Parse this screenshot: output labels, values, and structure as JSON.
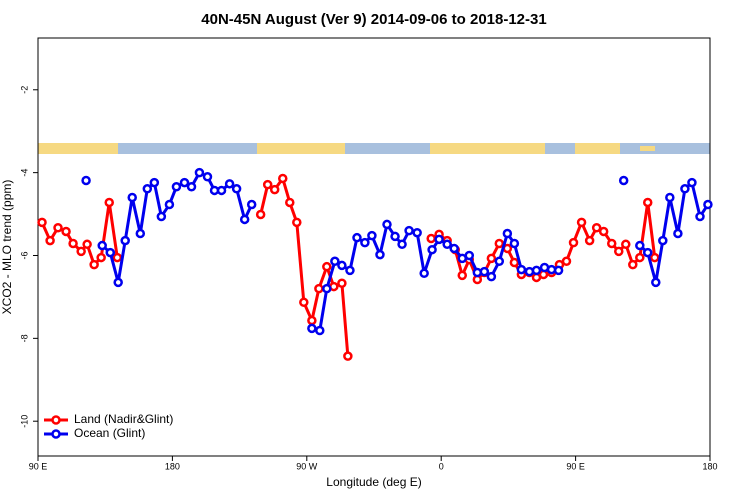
{
  "chart_data": {
    "type": "line",
    "title": "40N-45N August (Ver 9)   2014-09-06 to 2018-12-31",
    "xlabel": "Longitude (deg E)",
    "ylabel": "XCO2 - MLO trend (ppm)",
    "xlim": [
      90,
      540
    ],
    "ylim": [
      -10.84,
      -0.75
    ],
    "xticks": [
      {
        "value": 90,
        "label": "90 E"
      },
      180,
      {
        "value": 270,
        "label": "90 W"
      },
      {
        "value": 360,
        "label": "0"
      },
      {
        "value": 450,
        "label": "90 E"
      },
      {
        "value": 540,
        "label": "180"
      }
    ],
    "yticks": [
      -2,
      -4,
      -6,
      -8,
      -10
    ],
    "legend": "bottomleft",
    "series": [
      {
        "name": "Land (Nadir&Glint)",
        "color": "#ff0000",
        "x": [
          92.7,
          98.1,
          103.4,
          108.8,
          113.5,
          118.9,
          122.9,
          127.6,
          132.3,
          137.7,
          143.1,
          null,
          239.1,
          243.8,
          248.5,
          253.9,
          258.6,
          263.3,
          268.0,
          273.4,
          278.1,
          283.4,
          288.1,
          293.5,
          297.5,
          null,
          353.3,
          358.6,
          364.0,
          369.4,
          374.1,
          378.8,
          384.2,
          388.9,
          393.6,
          398.9,
          404.3,
          409.0,
          413.7,
          419.1,
          423.8,
          428.5,
          433.9,
          439.2,
          443.9,
          448.6,
          454.0,
          459.4,
          464.1,
          468.8,
          474.2,
          478.9,
          483.6,
          488.3,
          493.0,
          498.3,
          503.0
        ],
        "values": [
          -5.2,
          -5.64,
          -5.33,
          -5.42,
          -5.71,
          -5.9,
          -5.73,
          -6.22,
          -6.05,
          -4.72,
          -6.05,
          null,
          -5.01,
          -4.29,
          -4.41,
          -4.14,
          -4.72,
          -5.2,
          -7.13,
          -7.57,
          -6.8,
          -6.27,
          -6.75,
          -6.67,
          -8.43,
          null,
          -5.59,
          -5.49,
          -5.64,
          -5.86,
          -6.48,
          -6.1,
          -6.58,
          -6.41,
          -6.07,
          -5.71,
          -5.83,
          -6.17,
          -6.46,
          -6.41,
          -6.53,
          -6.46,
          -6.41,
          -6.22,
          -6.14,
          -5.69,
          -5.2,
          -5.64,
          -5.33,
          -5.42,
          -5.71,
          -5.9,
          -5.73,
          -6.22,
          -6.05,
          -4.72,
          -6.05
        ]
      },
      {
        "name": "Ocean (Glint)",
        "color": "#0000ee",
        "x": [
          122.2,
          null,
          133.0,
          138.4,
          143.7,
          148.4,
          153.1,
          158.5,
          163.2,
          167.9,
          172.6,
          178.0,
          182.7,
          188.1,
          192.8,
          198.1,
          203.5,
          208.2,
          212.9,
          218.3,
          223.0,
          228.4,
          233.1,
          null,
          273.4,
          278.7,
          283.4,
          288.8,
          293.5,
          298.9,
          303.6,
          308.9,
          313.6,
          319.0,
          323.7,
          329.1,
          333.8,
          338.5,
          343.9,
          348.6,
          353.9,
          358.6,
          364.0,
          368.7,
          374.1,
          378.8,
          384.2,
          388.9,
          393.6,
          398.9,
          404.3,
          409.0,
          413.7,
          419.1,
          423.8,
          429.2,
          433.9,
          438.6,
          null,
          482.2,
          null,
          493.0,
          498.3,
          503.7,
          508.4,
          513.1,
          518.5,
          523.2,
          527.9,
          533.3,
          538.6
        ],
        "values": [
          -4.19,
          null,
          -5.76,
          -5.93,
          -6.65,
          -5.64,
          -4.6,
          -5.47,
          -4.39,
          -4.24,
          -5.06,
          -4.77,
          -4.34,
          -4.24,
          -4.34,
          -4.0,
          -4.1,
          -4.43,
          -4.43,
          -4.27,
          -4.39,
          -5.13,
          -4.77,
          null,
          -7.76,
          -7.81,
          -6.8,
          -6.14,
          -6.24,
          -6.36,
          -5.57,
          -5.69,
          -5.52,
          -5.98,
          -5.25,
          -5.54,
          -5.73,
          -5.4,
          -5.45,
          -6.43,
          -5.86,
          -5.61,
          -5.73,
          -5.83,
          -6.07,
          -6.0,
          -6.41,
          -6.39,
          -6.51,
          -6.14,
          -5.47,
          -5.71,
          -6.34,
          -6.39,
          -6.36,
          -6.29,
          -6.34,
          -6.36,
          null,
          -4.19,
          null,
          -5.76,
          -5.93,
          -6.65,
          -5.64,
          -4.6,
          -5.47,
          -4.39,
          -4.24,
          -5.06,
          -4.77
        ]
      }
    ]
  }
}
